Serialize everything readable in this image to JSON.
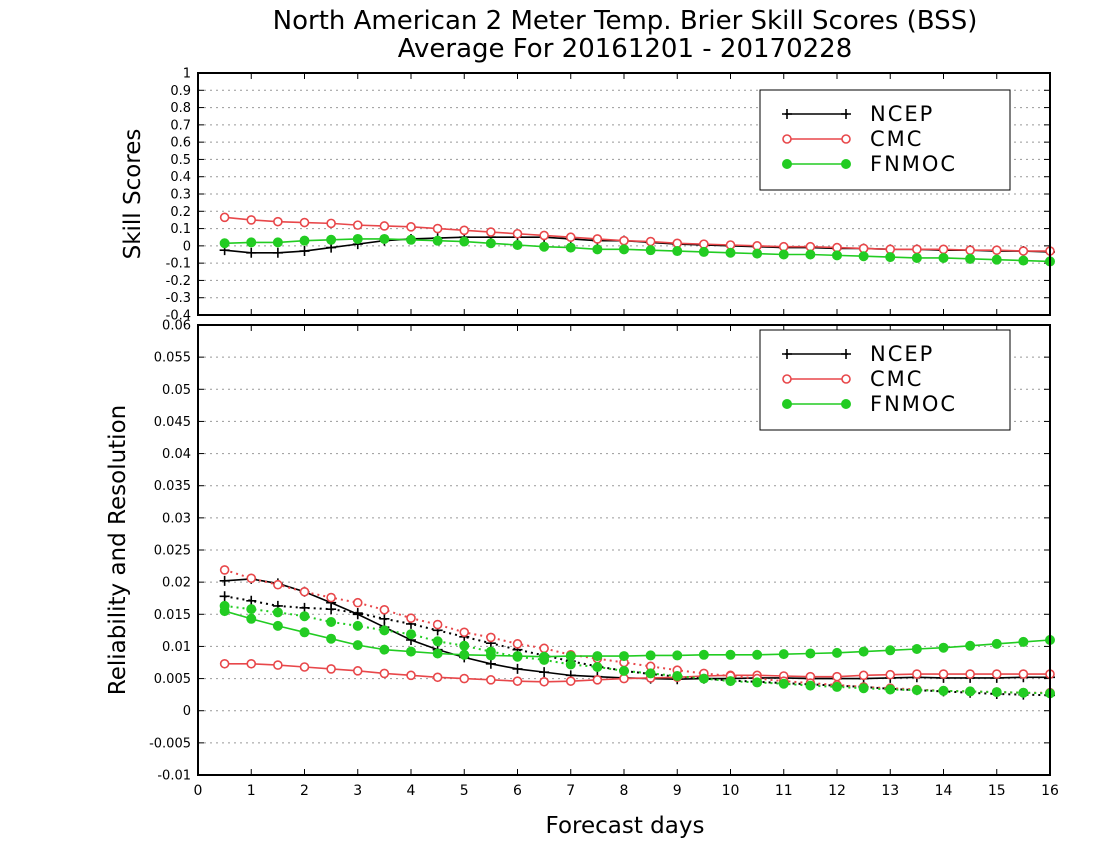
{
  "title_line1": "North American 2 Meter Temp. Brier Skill Scores (BSS)",
  "title_line2": "Average For 20161201 - 20170228",
  "colors": {
    "NCEP": "#000000",
    "CMC": "#e8474a",
    "FNMOC": "#22cc22"
  },
  "chart_data": [
    {
      "type": "line",
      "ylabel": "Skill Scores",
      "xlim": [
        0,
        16
      ],
      "ylim": [
        -0.4,
        1
      ],
      "yticks": [
        "1",
        "0.9",
        "0.8",
        "0.7",
        "0.6",
        "0.5",
        "0.4",
        "0.3",
        "0.2",
        "0.1",
        "0",
        "-0.1",
        "-0.2",
        "-0.3",
        "-0.4"
      ],
      "legend": [
        "NCEP",
        "CMC",
        "FNMOC"
      ],
      "legend_position": "top-right",
      "x": [
        0.5,
        1,
        1.5,
        2,
        2.5,
        3,
        3.5,
        4,
        4.5,
        5,
        5.5,
        6,
        6.5,
        7,
        7.5,
        8,
        8.5,
        9,
        9.5,
        10,
        10.5,
        11,
        11.5,
        12,
        12.5,
        13,
        13.5,
        14,
        14.5,
        15,
        15.5,
        16
      ],
      "series": [
        {
          "name": "NCEP",
          "marker": "plus",
          "style": "solid",
          "values": [
            -0.025,
            -0.04,
            -0.04,
            -0.03,
            -0.01,
            0.01,
            0.03,
            0.04,
            0.045,
            0.05,
            0.05,
            0.05,
            0.05,
            0.04,
            0.03,
            0.03,
            0.02,
            0.01,
            0.005,
            0,
            -0.005,
            -0.01,
            -0.01,
            -0.015,
            -0.015,
            -0.02,
            -0.02,
            -0.025,
            -0.025,
            -0.03,
            -0.03,
            -0.035
          ]
        },
        {
          "name": "CMC",
          "marker": "open-circle",
          "style": "solid",
          "values": [
            0.165,
            0.15,
            0.14,
            0.135,
            0.13,
            0.12,
            0.115,
            0.11,
            0.1,
            0.09,
            0.08,
            0.07,
            0.06,
            0.05,
            0.04,
            0.03,
            0.025,
            0.015,
            0.01,
            0.005,
            0,
            -0.005,
            -0.005,
            -0.01,
            -0.015,
            -0.02,
            -0.02,
            -0.02,
            -0.025,
            -0.025,
            -0.03,
            -0.03
          ]
        },
        {
          "name": "FNMOC",
          "marker": "filled-circle",
          "style": "solid",
          "values": [
            0.015,
            0.02,
            0.02,
            0.03,
            0.035,
            0.04,
            0.04,
            0.035,
            0.03,
            0.025,
            0.015,
            0.005,
            -0.005,
            -0.01,
            -0.02,
            -0.02,
            -0.025,
            -0.03,
            -0.035,
            -0.04,
            -0.045,
            -0.05,
            -0.05,
            -0.055,
            -0.06,
            -0.065,
            -0.07,
            -0.07,
            -0.075,
            -0.08,
            -0.085,
            -0.09
          ]
        }
      ]
    },
    {
      "type": "line",
      "xlabel": "Forecast days",
      "ylabel": "Reliability and Resolution",
      "xlim": [
        0,
        16
      ],
      "ylim": [
        -0.01,
        0.06
      ],
      "xticks": [
        "0",
        "1",
        "2",
        "3",
        "4",
        "5",
        "6",
        "7",
        "8",
        "9",
        "10",
        "11",
        "12",
        "13",
        "14",
        "15",
        "16"
      ],
      "yticks": [
        "0.06",
        "0.055",
        "0.05",
        "0.045",
        "0.04",
        "0.035",
        "0.03",
        "0.025",
        "0.02",
        "0.015",
        "0.01",
        "0.005",
        "0",
        "-0.005",
        "-0.01"
      ],
      "legend": [
        "NCEP",
        "CMC",
        "FNMOC"
      ],
      "legend_position": "top-right",
      "x": [
        0.5,
        1,
        1.5,
        2,
        2.5,
        3,
        3.5,
        4,
        4.5,
        5,
        5.5,
        6,
        6.5,
        7,
        7.5,
        8,
        8.5,
        9,
        9.5,
        10,
        10.5,
        11,
        11.5,
        12,
        12.5,
        13,
        13.5,
        14,
        14.5,
        15,
        15.5,
        16
      ],
      "series": [
        {
          "name": "NCEP",
          "marker": "plus",
          "style": "solid",
          "values": [
            0.0202,
            0.0205,
            0.0198,
            0.0185,
            0.0168,
            0.015,
            0.013,
            0.011,
            0.0095,
            0.0083,
            0.0073,
            0.0065,
            0.006,
            0.0055,
            0.0053,
            0.0051,
            0.005,
            0.0049,
            0.005,
            0.005,
            0.0051,
            0.0051,
            0.005,
            0.005,
            0.005,
            0.0051,
            0.0052,
            0.0051,
            0.0051,
            0.0051,
            0.0052,
            0.0052
          ]
        },
        {
          "name": "NCEP",
          "marker": "plus",
          "style": "dotted",
          "values": [
            0.0178,
            0.0171,
            0.0163,
            0.016,
            0.0158,
            0.0152,
            0.0143,
            0.0135,
            0.0125,
            0.0115,
            0.0105,
            0.0095,
            0.0086,
            0.0077,
            0.0069,
            0.0062,
            0.0057,
            0.0053,
            0.005,
            0.0047,
            0.0045,
            0.0043,
            0.0041,
            0.0039,
            0.0037,
            0.0034,
            0.0032,
            0.003,
            0.0028,
            0.0026,
            0.0025,
            0.0024
          ]
        },
        {
          "name": "CMC",
          "marker": "open-circle",
          "style": "solid",
          "values": [
            0.0073,
            0.0073,
            0.0071,
            0.0068,
            0.0065,
            0.0062,
            0.0058,
            0.0055,
            0.0052,
            0.005,
            0.0048,
            0.0046,
            0.0045,
            0.0046,
            0.0048,
            0.005,
            0.0051,
            0.0052,
            0.0054,
            0.0055,
            0.0055,
            0.0054,
            0.0053,
            0.0053,
            0.0055,
            0.0056,
            0.0057,
            0.0057,
            0.0057,
            0.0057,
            0.0057,
            0.0057
          ]
        },
        {
          "name": "CMC",
          "marker": "open-circle",
          "style": "dotted",
          "values": [
            0.0219,
            0.0206,
            0.0196,
            0.0185,
            0.0176,
            0.0168,
            0.0157,
            0.0144,
            0.0134,
            0.0122,
            0.0114,
            0.0104,
            0.0097,
            0.0087,
            0.0081,
            0.0075,
            0.0069,
            0.0063,
            0.0058,
            0.0054,
            0.005,
            0.0046,
            0.0043,
            0.004,
            0.0037,
            0.0035,
            0.0033,
            0.0031,
            0.003,
            0.0029,
            0.0028,
            0.0028
          ]
        },
        {
          "name": "FNMOC",
          "marker": "filled-circle",
          "style": "solid",
          "values": [
            0.0155,
            0.0143,
            0.0132,
            0.0122,
            0.0112,
            0.0102,
            0.0095,
            0.0092,
            0.0089,
            0.0087,
            0.0086,
            0.0085,
            0.0084,
            0.0085,
            0.0085,
            0.0085,
            0.0086,
            0.0086,
            0.0087,
            0.0087,
            0.0087,
            0.0088,
            0.0089,
            0.009,
            0.0092,
            0.0094,
            0.0096,
            0.0098,
            0.0101,
            0.0104,
            0.0107,
            0.011
          ]
        },
        {
          "name": "FNMOC",
          "marker": "filled-circle",
          "style": "dotted",
          "values": [
            0.0163,
            0.0158,
            0.0153,
            0.0147,
            0.0138,
            0.0132,
            0.0125,
            0.0119,
            0.0108,
            0.0101,
            0.0092,
            0.0084,
            0.0079,
            0.0072,
            0.0068,
            0.0062,
            0.0058,
            0.0054,
            0.005,
            0.0046,
            0.0044,
            0.0042,
            0.0039,
            0.0037,
            0.0035,
            0.0033,
            0.0032,
            0.0031,
            0.003,
            0.0029,
            0.0028,
            0.0027
          ]
        }
      ]
    }
  ]
}
